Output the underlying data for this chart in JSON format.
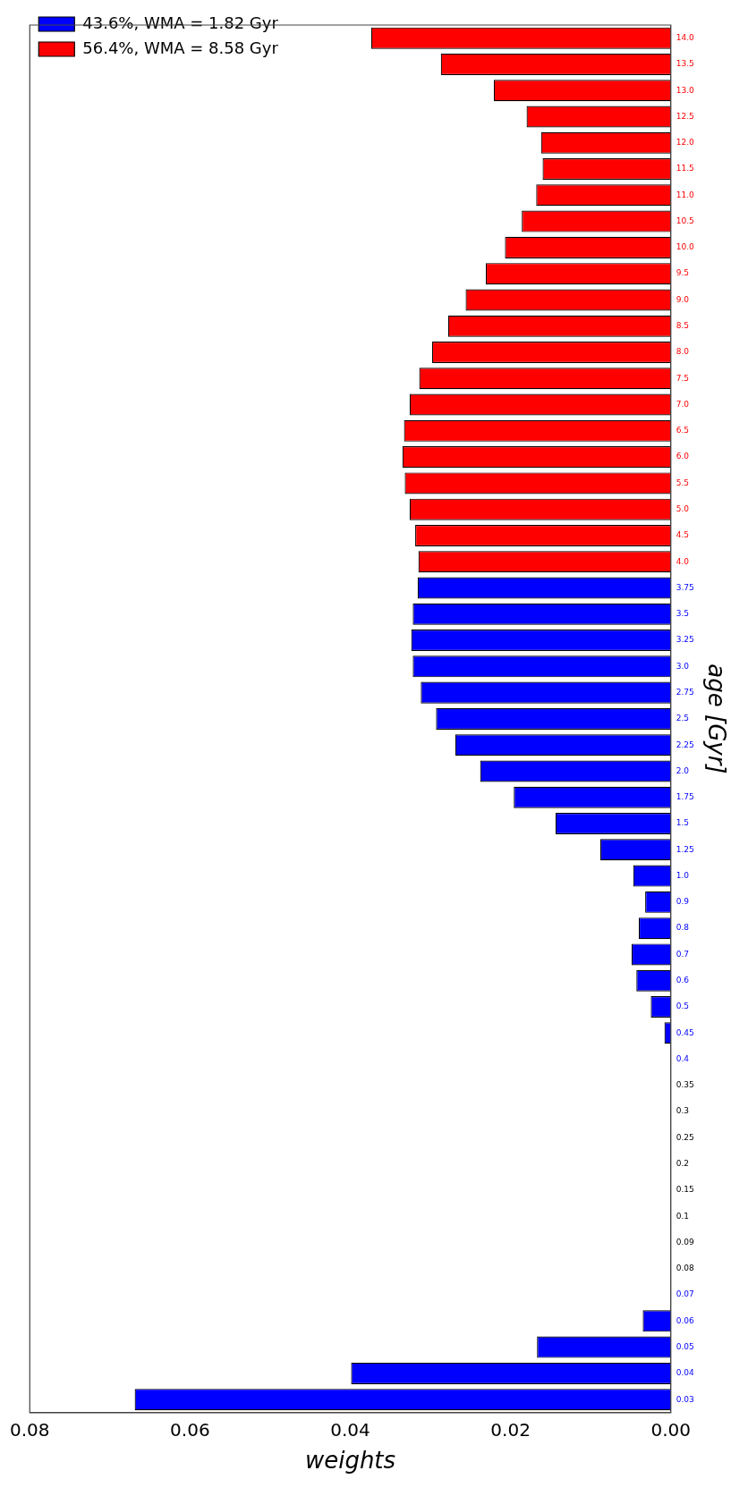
{
  "chart_data": {
    "type": "bar",
    "orientation": "horizontal",
    "xlabel": "weights",
    "ylabel": "age [Gyr]",
    "categories": [
      "14.0",
      "13.5",
      "13.0",
      "12.5",
      "12.0",
      "11.5",
      "11.0",
      "10.5",
      "10.0",
      "9.5",
      "9.0",
      "8.5",
      "8.0",
      "7.5",
      "7.0",
      "6.5",
      "6.0",
      "5.5",
      "5.0",
      "4.5",
      "4.0",
      "3.75",
      "3.5",
      "3.25",
      "3.0",
      "2.75",
      "2.5",
      "2.25",
      "2.0",
      "1.75",
      "1.5",
      "1.25",
      "1.0",
      "0.9",
      "0.8",
      "0.7",
      "0.6",
      "0.5",
      "0.45",
      "0.4",
      "0.35",
      "0.3",
      "0.25",
      "0.2",
      "0.15",
      "0.1",
      "0.09",
      "0.08",
      "0.07",
      "0.06",
      "0.05",
      "0.04",
      "0.03"
    ],
    "series": [
      {
        "name": "43.6%, WMA = 1.82 Gyr",
        "color": "#0000ff",
        "values": [
          null,
          null,
          null,
          null,
          null,
          null,
          null,
          null,
          null,
          null,
          null,
          null,
          null,
          null,
          null,
          null,
          null,
          null,
          null,
          null,
          null,
          0.0316,
          0.0322,
          0.0324,
          0.0322,
          0.0312,
          0.0293,
          0.0269,
          0.0238,
          0.0196,
          0.0144,
          0.0088,
          0.0047,
          0.0032,
          0.004,
          0.0049,
          0.0043,
          0.0025,
          0.0008,
          0,
          null,
          null,
          null,
          null,
          null,
          null,
          null,
          null,
          0,
          0.0035,
          0.0167,
          0.0399,
          0.0669
        ]
      },
      {
        "name": "56.4%, WMA = 8.58 Gyr",
        "color": "#ff0000",
        "values": [
          0.0374,
          0.0287,
          0.0221,
          0.018,
          0.0162,
          0.016,
          0.0168,
          0.0186,
          0.0207,
          0.0231,
          0.0256,
          0.0278,
          0.0298,
          0.0314,
          0.0326,
          0.0333,
          0.0335,
          0.0332,
          0.0326,
          0.0319,
          0.0315,
          null,
          null,
          null,
          null,
          null,
          null,
          null,
          null,
          null,
          null,
          null,
          null,
          null,
          null,
          null,
          null,
          null,
          null,
          null,
          null,
          null,
          null,
          null,
          null,
          null,
          null,
          null,
          null,
          null,
          null,
          null,
          null
        ]
      }
    ],
    "xlim": [
      0.08,
      0
    ],
    "xticks": [
      {
        "value": 0.08,
        "label": "0.08"
      },
      {
        "value": 0.06,
        "label": "0.06"
      },
      {
        "value": 0.04,
        "label": "0.04"
      },
      {
        "value": 0.02,
        "label": "0.02"
      },
      {
        "value": 0,
        "label": "0.00"
      }
    ],
    "grid": false,
    "legend": "top left"
  }
}
